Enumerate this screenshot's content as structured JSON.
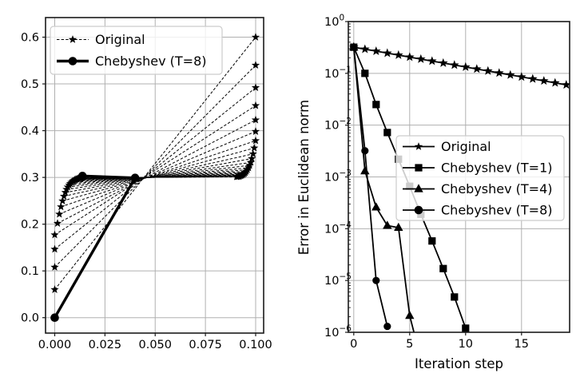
{
  "colors": {
    "background": "#ffffff",
    "series": "#000000",
    "grid": "#b0b0b0",
    "spine": "#1a1a1a",
    "legend_border": "#cccccc",
    "legend_fill": "#ffffff"
  },
  "chart_data": [
    {
      "id": "left-panel",
      "type": "line",
      "title": "",
      "xlabel": "",
      "ylabel": "",
      "grid": "on",
      "xlim": [
        -0.00457,
        0.10398
      ],
      "ylim": [
        -0.033,
        0.642
      ],
      "xticks": {
        "values": [
          0.0,
          0.025,
          0.05,
          0.075,
          0.1
        ],
        "labels": [
          "0.000",
          "0.025",
          "0.050",
          "0.075",
          "0.100"
        ]
      },
      "yticks": {
        "values": [
          0.0,
          0.1,
          0.2,
          0.3,
          0.4,
          0.5,
          0.6
        ],
        "labels": [
          "0.0",
          "0.1",
          "0.2",
          "0.3",
          "0.4",
          "0.5",
          "0.6"
        ]
      },
      "legend": {
        "position": "upper-left",
        "entries": [
          {
            "label": "Original",
            "marker": "star",
            "linestyle": "dashed",
            "linewidth": 1
          },
          {
            "label": "Chebyshev (T=8)",
            "marker": "circle",
            "linestyle": "solid",
            "linewidth": 3.4
          }
        ]
      },
      "series": [
        {
          "name": "Original",
          "marker": "star",
          "linestyle": "dashed",
          "structure": "zigzag-fan-segments",
          "segments": [
            [
              [
                0,
                0.06
              ],
              [
                0.1,
                0.6
              ]
            ],
            [
              [
                0,
                0.108
              ],
              [
                0.1,
                0.54
              ]
            ],
            [
              [
                0,
                0.1464
              ],
              [
                0.1,
                0.492
              ]
            ],
            [
              [
                0,
                0.1771
              ],
              [
                0.1,
                0.4536
              ]
            ],
            [
              [
                0.0014,
                0.2017
              ],
              [
                0.1,
                0.4229
              ]
            ],
            [
              [
                0.0023,
                0.2214
              ],
              [
                0.1,
                0.3983
              ]
            ],
            [
              [
                0.0031,
                0.2371
              ],
              [
                0.1,
                0.3786
              ]
            ],
            [
              [
                0.0039,
                0.2497
              ],
              [
                0.0993,
                0.3629
              ]
            ],
            [
              [
                0.0046,
                0.2597
              ],
              [
                0.0987,
                0.3503
              ]
            ],
            [
              [
                0.0053,
                0.2678
              ],
              [
                0.0981,
                0.3403
              ]
            ],
            [
              [
                0.0059,
                0.2742
              ],
              [
                0.0976,
                0.3322
              ]
            ],
            [
              [
                0.0065,
                0.2794
              ],
              [
                0.097,
                0.3258
              ]
            ],
            [
              [
                0.0072,
                0.2835
              ],
              [
                0.0965,
                0.3206
              ]
            ],
            [
              [
                0.0077,
                0.2868
              ],
              [
                0.0959,
                0.3165
              ]
            ],
            [
              [
                0.0083,
                0.2894
              ],
              [
                0.0954,
                0.3132
              ]
            ],
            [
              [
                0.0089,
                0.2916
              ],
              [
                0.0949,
                0.3105
              ]
            ],
            [
              [
                0.0094,
                0.2932
              ],
              [
                0.0944,
                0.3084
              ]
            ],
            [
              [
                0.01,
                0.2946
              ],
              [
                0.0939,
                0.3068
              ]
            ],
            [
              [
                0.0105,
                0.2957
              ],
              [
                0.0934,
                0.3054
              ]
            ],
            [
              [
                0.011,
                0.2965
              ],
              [
                0.0929,
                0.3043
              ]
            ],
            [
              [
                0.0115,
                0.2972
              ],
              [
                0.0924,
                0.3035
              ]
            ],
            [
              [
                0.012,
                0.2978
              ],
              [
                0.0919,
                0.3028
              ]
            ],
            [
              [
                0.0125,
                0.2982
              ],
              [
                0.0915,
                0.3022
              ]
            ],
            [
              [
                0.013,
                0.2986
              ],
              [
                0.091,
                0.3018
              ]
            ],
            [
              [
                0.0135,
                0.2989
              ],
              [
                0.0905,
                0.3014
              ]
            ]
          ]
        },
        {
          "name": "Chebyshev (T=8)",
          "marker": "circle",
          "linestyle": "solid",
          "linewidth": 3.4,
          "points": [
            [
              0,
              0
            ],
            [
              0.04,
              0.299
            ],
            [
              0.0138,
              0.303
            ]
          ]
        }
      ]
    },
    {
      "id": "right-panel",
      "type": "line",
      "title": "",
      "xlabel": "Iteration step",
      "ylabel": "Error in Euclidean norm",
      "grid": "on",
      "y_scale": "log",
      "xlim": [
        -0.486,
        19.3
      ],
      "ylim": [
        1e-06,
        1
      ],
      "xticks": {
        "values": [
          0,
          5,
          10,
          15
        ],
        "labels": [
          "0",
          "5",
          "10",
          "15"
        ]
      },
      "yticks": {
        "exponents": [
          0,
          -1,
          -2,
          -3,
          -4,
          -5,
          -6
        ],
        "labels": [
          "10^0",
          "10^-1",
          "10^-2",
          "10^-3",
          "10^-4",
          "10^-5",
          "10^-6"
        ]
      },
      "legend": {
        "position": "center-right",
        "entries": [
          {
            "label": "Original",
            "marker": "star",
            "linestyle": "solid",
            "linewidth": 1.7
          },
          {
            "label": "Chebyshev (T=1)",
            "marker": "square",
            "linestyle": "solid",
            "linewidth": 1.8
          },
          {
            "label": "Chebyshev (T=4)",
            "marker": "triangle",
            "linestyle": "solid",
            "linewidth": 1.8
          },
          {
            "label": "Chebyshev (T=8)",
            "marker": "circle",
            "linestyle": "solid",
            "linewidth": 1.8
          }
        ]
      },
      "series": [
        {
          "name": "Original",
          "marker": "star",
          "x": [
            0,
            1,
            2,
            3,
            4,
            5,
            6,
            7,
            8,
            9,
            10,
            11,
            12,
            13,
            14,
            15,
            16,
            17,
            18,
            19
          ],
          "y": [
            0.32,
            0.293,
            0.2683,
            0.2457,
            0.225,
            0.206,
            0.1887,
            0.1727,
            0.1582,
            0.1449,
            0.1326,
            0.1215,
            0.1112,
            0.1019,
            0.0933,
            0.0854,
            0.0782,
            0.0716,
            0.0656,
            0.06
          ]
        },
        {
          "name": "Chebyshev (T=1)",
          "marker": "square",
          "x": [
            0,
            1,
            2,
            3,
            4,
            5,
            6,
            7,
            8,
            9,
            10
          ],
          "y": [
            0.32,
            0.1,
            0.025,
            0.0072,
            0.0022,
            0.00066,
            0.00019,
            5.8e-05,
            1.7e-05,
            4.8e-06,
            1.2e-06
          ]
        },
        {
          "name": "Chebyshev (T=4)",
          "marker": "triangle",
          "x": [
            0,
            1,
            2,
            3,
            4,
            5,
            6
          ],
          "y": [
            0.32,
            0.0013,
            0.00026,
            0.000115,
            0.000105,
            2.1e-06,
            3e-07
          ]
        },
        {
          "name": "Chebyshev (T=8)",
          "marker": "circle",
          "x": [
            0,
            1,
            2,
            3
          ],
          "y": [
            0.32,
            0.0032,
            1e-05,
            1.3e-06
          ]
        }
      ]
    }
  ]
}
